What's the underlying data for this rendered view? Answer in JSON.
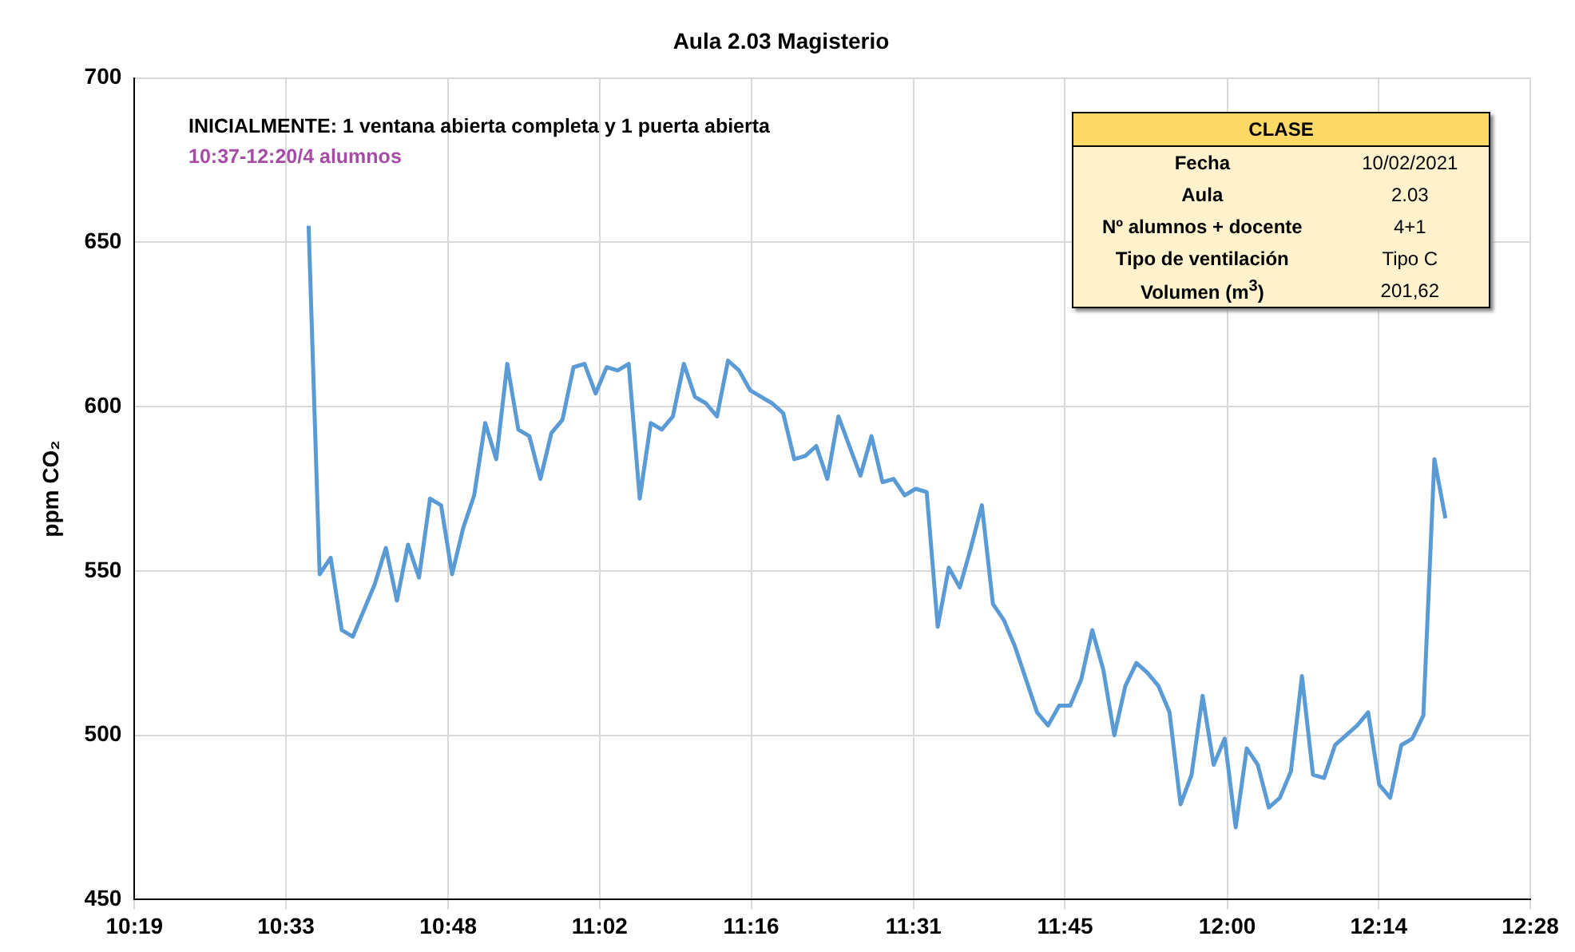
{
  "chart_data": {
    "type": "line",
    "title": "Aula 2.03 Magisterio",
    "ylabel": "ppm CO₂",
    "annotations": [
      "INICIALMENTE: 1 ventana abierta completa y 1 puerta abierta",
      "10:37-12:20/4 alumnos",
      "CLASE",
      "Fecha",
      "10/02/2021",
      "Aula",
      "2.03",
      "Nº alumnos + docente",
      "4+1",
      "Tipo de ventilación",
      "Tipo C",
      "Volumen (m$^{3}$)",
      "201,62"
    ],
    "x": [
      10.585,
      10.602,
      10.619,
      10.636,
      10.653,
      10.67,
      10.687,
      10.704,
      10.721,
      10.738,
      10.755,
      10.772,
      10.789,
      10.806,
      10.823,
      10.84,
      10.857,
      10.874,
      10.891,
      10.908,
      10.925,
      10.942,
      10.959,
      10.976,
      10.993,
      11.01,
      11.027,
      11.044,
      11.061,
      11.078,
      11.095,
      11.112,
      11.129,
      11.146,
      11.163,
      11.18,
      11.197,
      11.214,
      11.231,
      11.248,
      11.265,
      11.282,
      11.299,
      11.316,
      11.333,
      11.35,
      11.367,
      11.384,
      11.401,
      11.418,
      11.435,
      11.452,
      11.469,
      11.486,
      11.503,
      11.52,
      11.537,
      11.554,
      11.571,
      11.588,
      11.605,
      11.622,
      11.639,
      11.656,
      11.673,
      11.69,
      11.707,
      11.724,
      11.741,
      11.758,
      11.775,
      11.792,
      11.809,
      11.826,
      11.843,
      11.86,
      11.877,
      11.894,
      11.911,
      11.928,
      11.945,
      11.962,
      11.979,
      11.996,
      12.013,
      12.03,
      12.047,
      12.064,
      12.081,
      12.098,
      12.115,
      12.132,
      12.149,
      12.166,
      12.183,
      12.2,
      12.217,
      12.234,
      12.251,
      12.268,
      12.285,
      12.302,
      12.319,
      12.336
    ],
    "series": [
      {
        "color": "#5b9bd5",
        "values": [
          655,
          549,
          554,
          532,
          530,
          538,
          546,
          557,
          541,
          558,
          548,
          572,
          570,
          549,
          563,
          573,
          595,
          584,
          613,
          593,
          591,
          578,
          592,
          596,
          612,
          613,
          604,
          612,
          611,
          613,
          572,
          595,
          593,
          597,
          613,
          603,
          601,
          597,
          614,
          611,
          605,
          603,
          601,
          598,
          584,
          585,
          588,
          578,
          597,
          588,
          579,
          591,
          577,
          578,
          573,
          575,
          574,
          533,
          551,
          545,
          557,
          570,
          540,
          535,
          527,
          517,
          507,
          503,
          509,
          509,
          517,
          532,
          520,
          500,
          515,
          522,
          519,
          515,
          507,
          479,
          488,
          512,
          491,
          499,
          472,
          496,
          491,
          478,
          481,
          489,
          518,
          488,
          487,
          497,
          500,
          503,
          507,
          485,
          481,
          497,
          499,
          506,
          584,
          566
        ]
      }
    ],
    "xlim": [
      10.3167,
      12.4667
    ],
    "xticks": [
      {
        "value": 10.3167,
        "label": "10:19"
      },
      {
        "value": 10.55,
        "label": "10:33"
      },
      {
        "value": 10.8,
        "label": "10:48"
      },
      {
        "value": 11.0333,
        "label": "11:02"
      },
      {
        "value": 11.2667,
        "label": "11:16"
      },
      {
        "value": 11.5167,
        "label": "11:31"
      },
      {
        "value": 11.75,
        "label": "11:45"
      },
      {
        "value": 12.0,
        "label": "12:00"
      },
      {
        "value": 12.2333,
        "label": "12:14"
      },
      {
        "value": 12.4667,
        "label": "12:28"
      }
    ],
    "ylim": [
      450,
      700
    ],
    "yticks": [
      450,
      500,
      550,
      600,
      650,
      700
    ],
    "grid": true,
    "legend": false,
    "marker": "none",
    "line_style": "solid"
  }
}
